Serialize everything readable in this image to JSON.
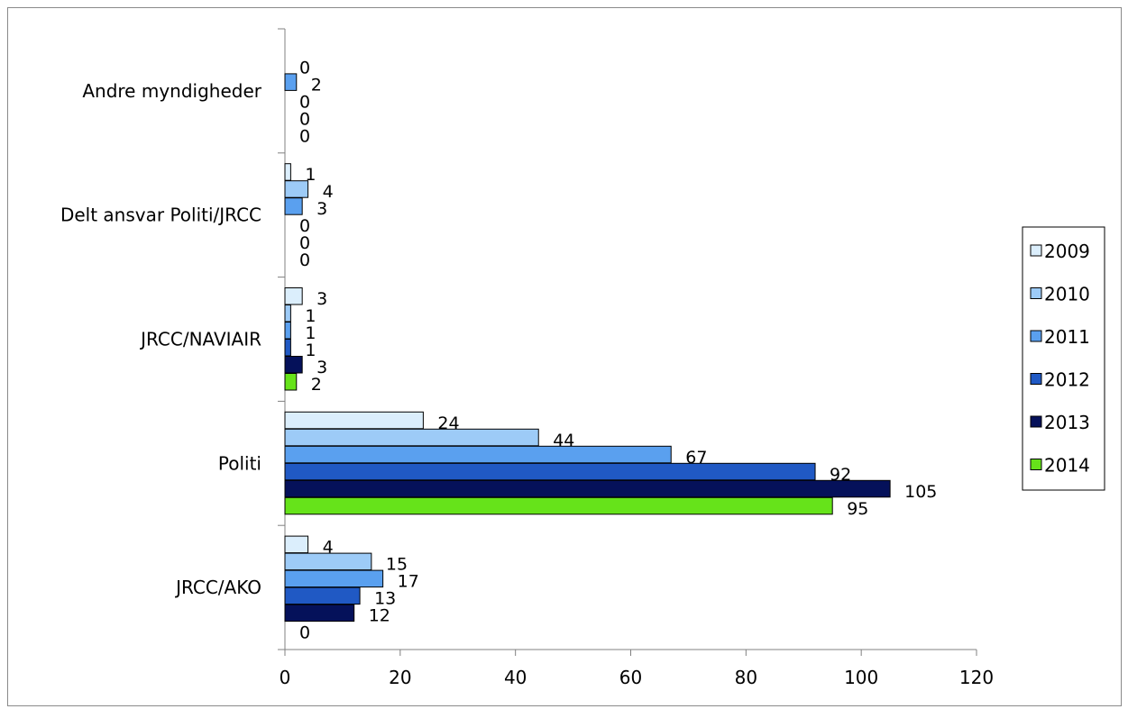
{
  "chart_data": {
    "type": "bar",
    "orientation": "horizontal",
    "categories": [
      "JRCC/AKO",
      "Politi",
      "JRCC/NAVIAIR",
      "Delt ansvar Politi/JRCC",
      "Andre myndigheder"
    ],
    "series": [
      {
        "name": "2009",
        "color": "#dbeefc",
        "values": [
          4,
          24,
          3,
          1,
          null
        ]
      },
      {
        "name": "2010",
        "color": "#9dcbf7",
        "values": [
          15,
          44,
          1,
          4,
          0
        ]
      },
      {
        "name": "2011",
        "color": "#5aa0ef",
        "values": [
          17,
          67,
          1,
          3,
          2
        ]
      },
      {
        "name": "2012",
        "color": "#2059c4",
        "values": [
          13,
          92,
          1,
          0,
          0
        ]
      },
      {
        "name": "2013",
        "color": "#05115a",
        "values": [
          12,
          105,
          3,
          0,
          0
        ]
      },
      {
        "name": "2014",
        "color": "#66e31a",
        "values": [
          0,
          95,
          2,
          0,
          0
        ]
      }
    ],
    "xlim": [
      0,
      120
    ],
    "xticks": [
      0,
      20,
      40,
      60,
      80,
      100,
      120
    ],
    "grid": false,
    "legend_position": "right"
  }
}
